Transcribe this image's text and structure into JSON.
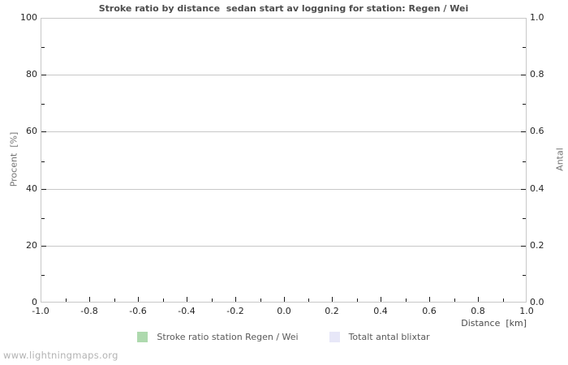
{
  "page": {
    "watermark": "www.lightningmaps.org"
  },
  "chart_data": {
    "type": "line",
    "title": "Stroke ratio by distance  sedan start av loggning for station: Regen / Wei",
    "xlabel": "Distance  [km]",
    "ylabel_left": "Procent  [%]",
    "ylabel_right": "Antal",
    "xlim": [
      -1.0,
      1.0
    ],
    "ylim_left": [
      0,
      100
    ],
    "ylim_right": [
      0.0,
      1.0
    ],
    "grid": "horizontal-major-only",
    "x_tick_labels": [
      "-1.0",
      "-0.8",
      "-0.6",
      "-0.4",
      "-0.2",
      "0.0",
      "0.2",
      "0.4",
      "0.6",
      "0.8",
      "1.0"
    ],
    "y_left_tick_labels": [
      "100",
      "80",
      "60",
      "40",
      "20",
      "0"
    ],
    "y_right_tick_labels": [
      "1.0",
      "0.8",
      "0.6",
      "0.4",
      "0.2",
      "0.0"
    ],
    "legend_position": "bottom",
    "legend": [
      {
        "label": "Stroke ratio station Regen / Wei",
        "color": "#aed9ae"
      },
      {
        "label": "Totalt antal blixtar",
        "color": "#e7e7f8"
      }
    ],
    "series": [
      {
        "name": "Stroke ratio station Regen / Wei",
        "color": "#aed9ae",
        "x": [],
        "y": []
      },
      {
        "name": "Totalt antal blixtar",
        "color": "#e7e7f8",
        "x": [],
        "y": []
      }
    ],
    "colors": {
      "grid": "#c8c8c8",
      "tick": "#1a1a1a",
      "title": "#4d4d4d",
      "axis_label": "#737373",
      "watermark": "#b3b3b3"
    }
  }
}
